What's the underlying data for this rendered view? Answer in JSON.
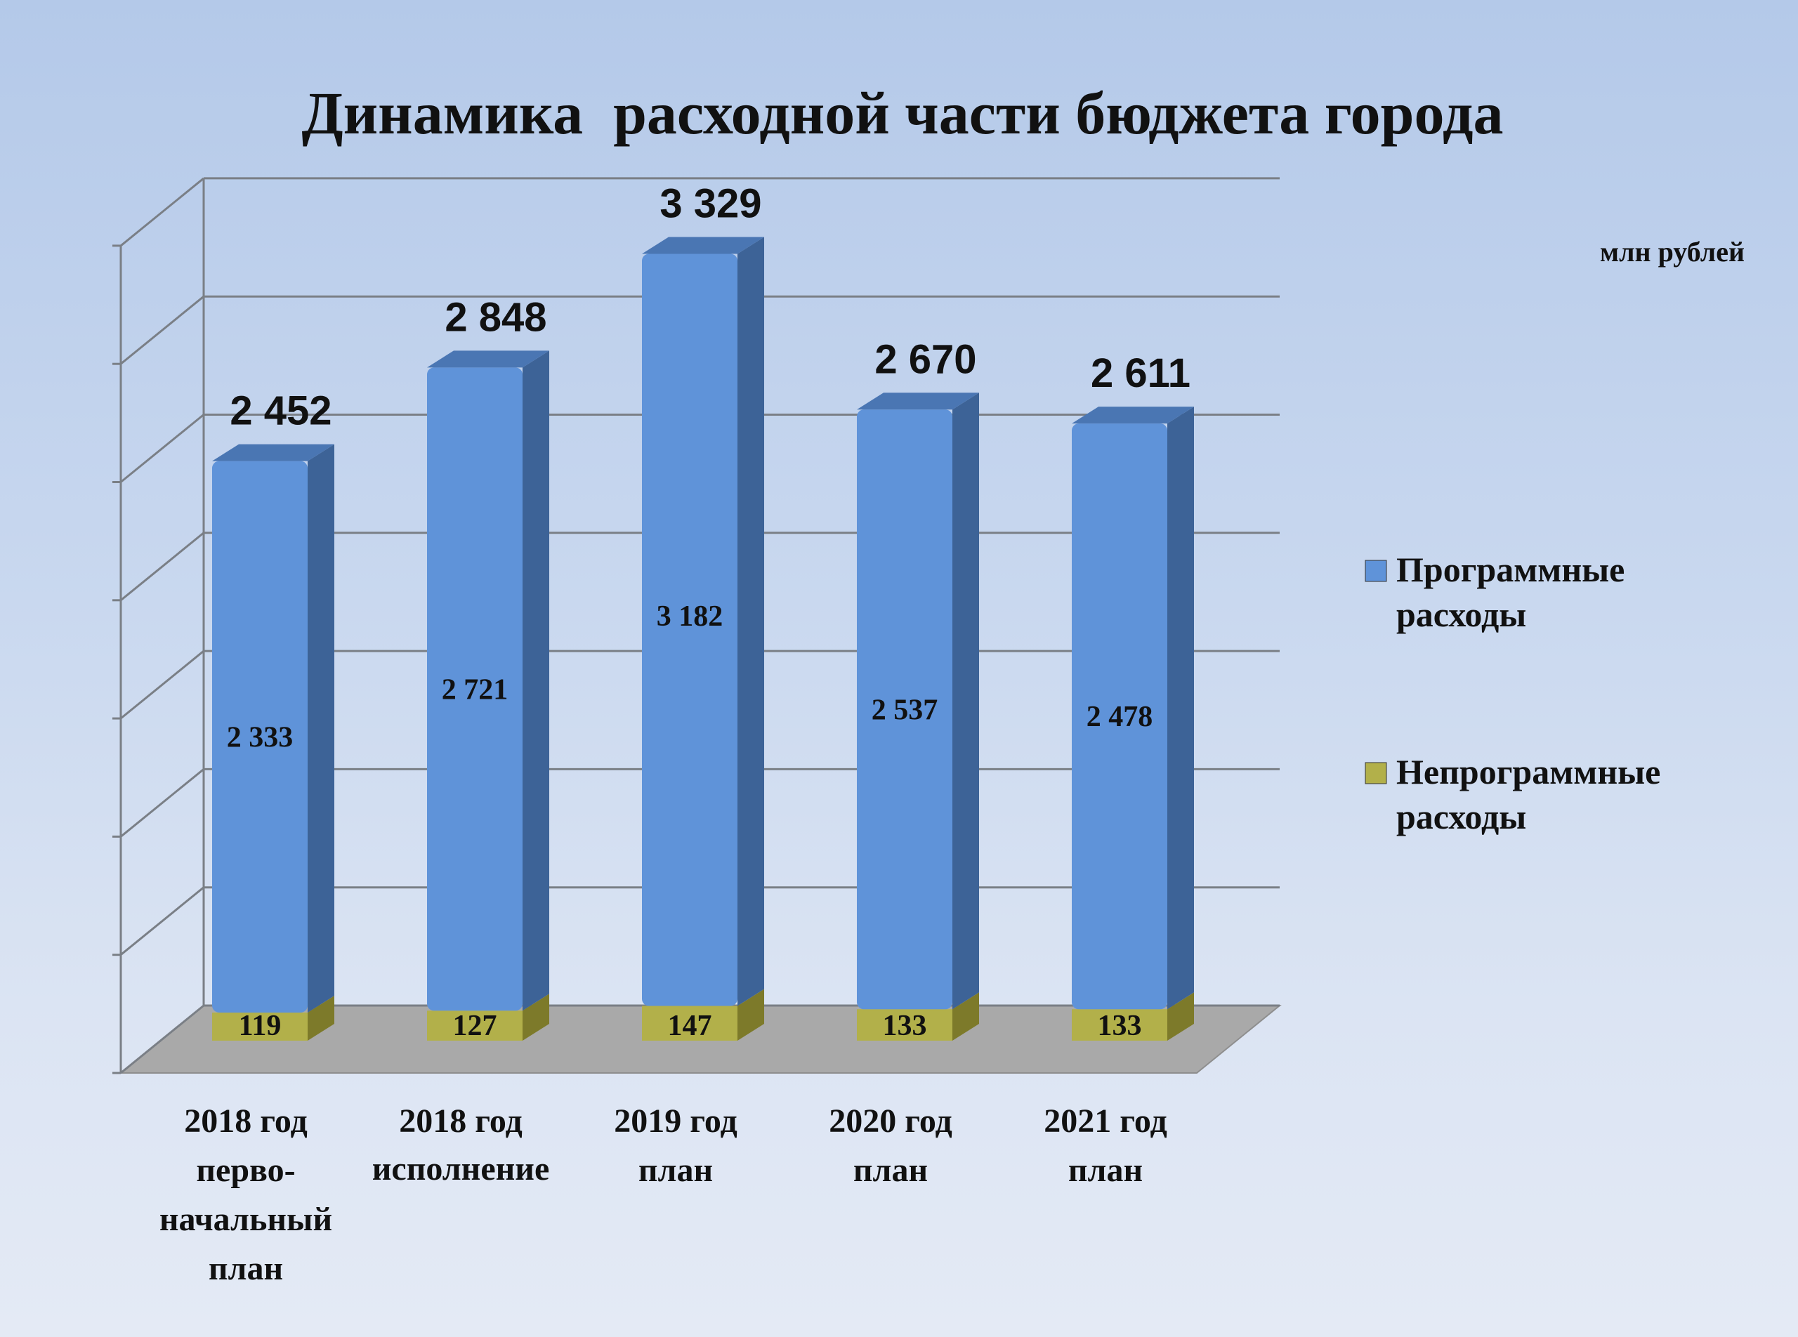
{
  "title": "Динамика  расходной части бюджета города",
  "unit": "млн рублей",
  "colors": {
    "programmatic": "#5f93d9",
    "programmatic_side": "#3d6397",
    "programmatic_top": "#4a76b3",
    "nonprogrammatic": "#b2b04a",
    "nonprogrammatic_side": "#7d7a2a",
    "floor": "#a9a9a9",
    "grid": "#7a7f86"
  },
  "legend": [
    {
      "label_lines": [
        "Программные",
        "расходы"
      ],
      "color_key": "programmatic"
    },
    {
      "label_lines": [
        "Непрограммные",
        "расходы"
      ],
      "color_key": "nonprogrammatic"
    }
  ],
  "chart_data": {
    "type": "bar",
    "stacked": true,
    "style": "3d-stacked-column",
    "categories": [
      [
        "2018 год",
        "перво-",
        "начальный",
        "план"
      ],
      [
        "2018 год",
        "исполнение"
      ],
      [
        "2019 год",
        "план"
      ],
      [
        "2020 год",
        "план"
      ],
      [
        "2021 год",
        "план"
      ]
    ],
    "series": [
      {
        "name": "Непрограммные расходы",
        "values": [
          119,
          127,
          147,
          133,
          133
        ],
        "labels": [
          "119",
          "127",
          "147",
          "133",
          "133"
        ]
      },
      {
        "name": "Программные расходы",
        "values": [
          2333,
          2721,
          3182,
          2537,
          2478
        ],
        "labels": [
          "2 333",
          "2 721",
          "3 182",
          "2 537",
          "2 478"
        ]
      }
    ],
    "totals": [
      2452,
      2848,
      3329,
      2670,
      2611
    ],
    "total_labels": [
      "2 452",
      "2 848",
      "3 329",
      "2 670",
      "2 611"
    ],
    "ylim": [
      0,
      3500
    ],
    "grid": true,
    "legend_position": "right"
  }
}
